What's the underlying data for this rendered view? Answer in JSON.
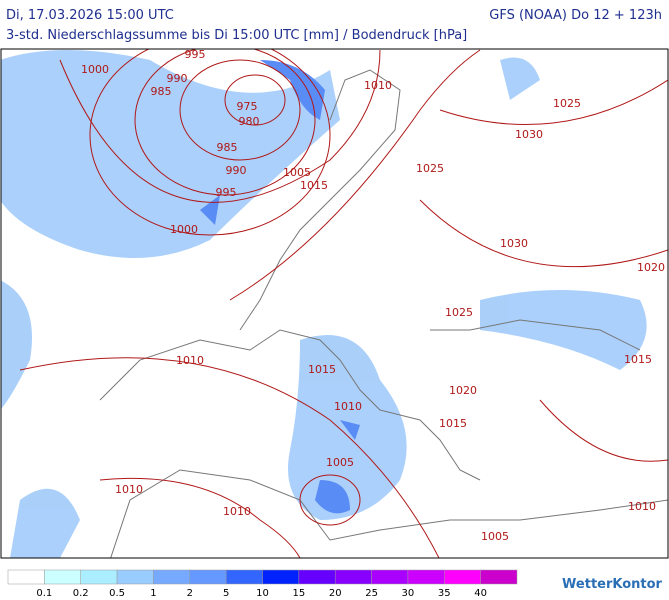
{
  "header": {
    "title": "Di, 17.03.2026 15:00 UTC",
    "model": "GFS (NOAA) Do 12 + 123h",
    "subtitle": "3-std. Niederschlagssumme bis Di 15:00 UTC [mm] / Bodendruck [hPa]"
  },
  "map": {
    "isobar_labels": [
      "995",
      "1000",
      "990",
      "985",
      "975",
      "980",
      "985",
      "990",
      "995",
      "1000",
      "1005",
      "1015",
      "1010",
      "1025",
      "1030",
      "1025",
      "1030",
      "1020",
      "1025",
      "1015",
      "1010",
      "1015",
      "1010",
      "1020",
      "1015",
      "1005",
      "1010",
      "1010",
      "1010",
      "1005"
    ]
  },
  "legend": {
    "colors": [
      "#ffffff",
      "#ccffff",
      "#aaeeff",
      "#99ccff",
      "#77aaff",
      "#6699ff",
      "#3366ff",
      "#0022ff",
      "#6600ff",
      "#8800ff",
      "#aa00ff",
      "#cc00ff",
      "#ff00ff",
      "#cc00cc"
    ],
    "labels": [
      "0.1",
      "0.2",
      "0.5",
      "1",
      "2",
      "5",
      "10",
      "15",
      "20",
      "25",
      "30",
      "35",
      "40"
    ]
  },
  "logo": "WetterKontor"
}
